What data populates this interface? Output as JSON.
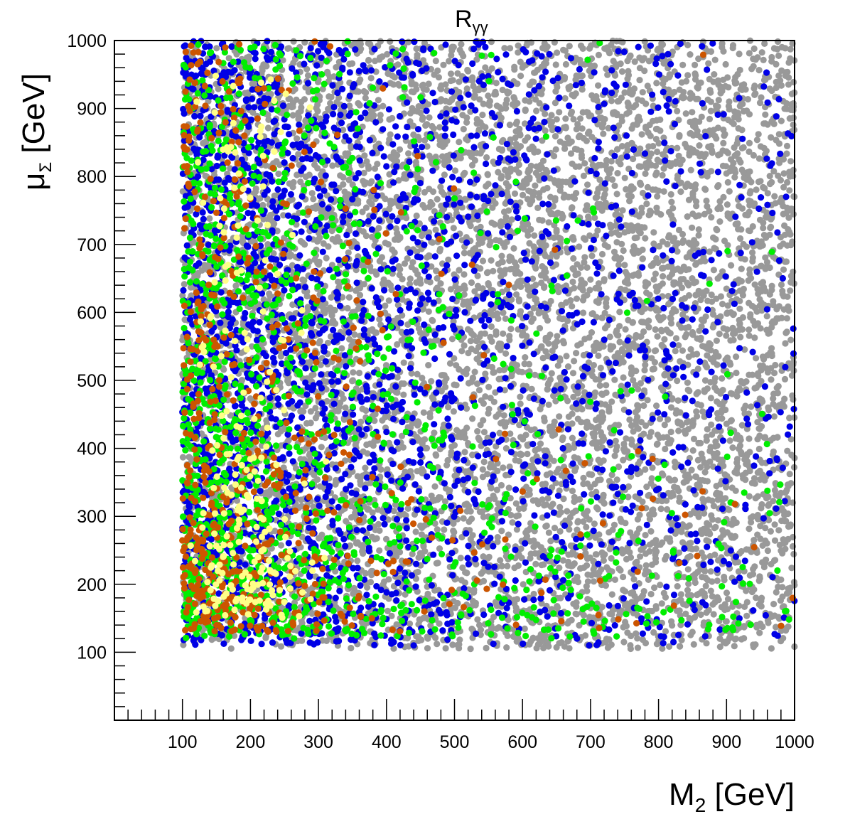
{
  "chart_data": {
    "type": "scatter",
    "title": {
      "base": "R",
      "subscript": "γγ"
    },
    "xlabel": {
      "base": "M",
      "subscript": "2",
      "unit": " [GeV]"
    },
    "ylabel": {
      "base": "μ",
      "subscript": "Σ",
      "unit": " [GeV]"
    },
    "xlim": [
      0,
      1000
    ],
    "ylim": [
      0,
      1000
    ],
    "x_ticks": [
      100,
      200,
      300,
      400,
      500,
      600,
      700,
      800,
      900,
      1000
    ],
    "y_ticks": [
      100,
      200,
      300,
      400,
      500,
      600,
      700,
      800,
      900,
      1000
    ],
    "x_ticks_labels": [
      "100",
      "200",
      "300",
      "400",
      "500",
      "600",
      "700",
      "800",
      "900",
      "1000"
    ],
    "y_ticks_labels": [
      "100",
      "200",
      "300",
      "400",
      "500",
      "600",
      "700",
      "800",
      "900",
      "1000"
    ],
    "grid": false,
    "legend": "none",
    "point_region": {
      "x_range": [
        100,
        1000
      ],
      "y_range": [
        100,
        1000
      ]
    },
    "series": [
      {
        "color": "#999999",
        "approx_count": 7500,
        "distribution": "uniform over full region"
      },
      {
        "color": "#0000e6",
        "approx_count": 2600,
        "distribution": "dense at low M2 (100-400), thinning toward high M2"
      },
      {
        "color": "#00ee00",
        "approx_count": 1300,
        "distribution": "concentrated at M2 100-400 and low mu (150-500), sparse band at mu 150-350 up to M2 1000"
      },
      {
        "color": "#cc5500",
        "approx_count": 650,
        "distribution": "concentrated at M2 100-300, mu 150-450, some along low mu at higher M2"
      },
      {
        "color": "#ffff88",
        "approx_count": 220,
        "distribution": "clustered at M2 120-300, mu 150-400 and M2 150-250 up to mu 900"
      }
    ]
  }
}
